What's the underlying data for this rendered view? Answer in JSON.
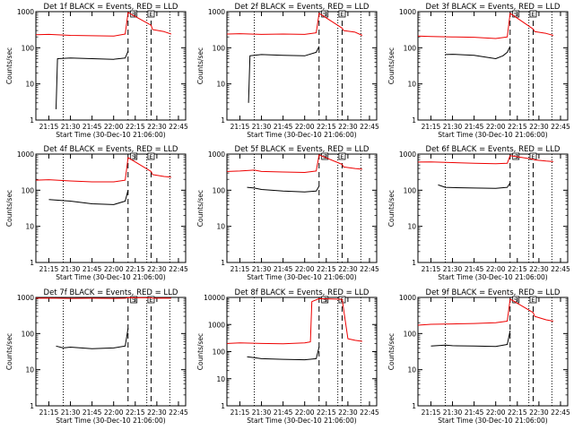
{
  "colors": {
    "events": "#000000",
    "lld": "#ee0000",
    "axes": "#000000",
    "background": "#ffffff"
  },
  "time_ticks": [
    "21:15",
    "21:30",
    "21:45",
    "22:00",
    "22:15",
    "22:30",
    "22:45"
  ],
  "xlabel": "Start Time (30-Dec-10 21:06:00)",
  "ylabel": "Counts/sec",
  "markers": [
    {
      "label": "S",
      "time": "22:14"
    },
    {
      "label": "E",
      "time": "22:26"
    }
  ],
  "chart_data": [
    {
      "type": "line",
      "title": "Det 1f BLACK = Events, RED = LLD",
      "x_range": [
        "21:06",
        "22:50"
      ],
      "ylim": [
        1,
        1000
      ],
      "yscale": "log",
      "y_ticks": [
        "1",
        "10",
        "100",
        "1000"
      ],
      "dotted_lines": [
        "21:25",
        "22:23",
        "22:39"
      ],
      "dashed_lines": [
        "22:10",
        "22:26"
      ],
      "series": [
        {
          "name": "Events",
          "values": [
            [
              "21:20",
              2
            ],
            [
              "21:21",
              50
            ],
            [
              "21:30",
              52
            ],
            [
              "21:45",
              50
            ],
            [
              "22:00",
              48
            ],
            [
              "22:08",
              52
            ],
            [
              "22:10",
              80
            ]
          ]
        },
        {
          "name": "LLD",
          "values": [
            [
              "21:06",
              230
            ],
            [
              "21:15",
              235
            ],
            [
              "21:30",
              220
            ],
            [
              "21:45",
              215
            ],
            [
              "22:00",
              210
            ],
            [
              "22:08",
              240
            ],
            [
              "22:10",
              950
            ],
            [
              "22:26",
              420
            ],
            [
              "22:27",
              320
            ],
            [
              "22:35",
              280
            ],
            [
              "22:40",
              240
            ]
          ]
        }
      ]
    },
    {
      "type": "line",
      "title": "Det 2f BLACK = Events, RED = LLD",
      "x_range": [
        "21:06",
        "22:50"
      ],
      "ylim": [
        1,
        1000
      ],
      "yscale": "log",
      "y_ticks": [
        "1",
        "10",
        "100",
        "1000"
      ],
      "dotted_lines": [
        "21:25",
        "22:23",
        "22:39"
      ],
      "dashed_lines": [
        "22:10",
        "22:26"
      ],
      "series": [
        {
          "name": "Events",
          "values": [
            [
              "21:21",
              3
            ],
            [
              "21:22",
              60
            ],
            [
              "21:30",
              65
            ],
            [
              "21:45",
              62
            ],
            [
              "22:00",
              60
            ],
            [
              "22:08",
              75
            ],
            [
              "22:10",
              110
            ]
          ]
        },
        {
          "name": "LLD",
          "values": [
            [
              "21:06",
              240
            ],
            [
              "21:15",
              245
            ],
            [
              "21:30",
              235
            ],
            [
              "21:45",
              240
            ],
            [
              "22:00",
              235
            ],
            [
              "22:08",
              260
            ],
            [
              "22:10",
              900
            ],
            [
              "22:26",
              350
            ],
            [
              "22:27",
              300
            ],
            [
              "22:35",
              270
            ],
            [
              "22:40",
              220
            ]
          ]
        }
      ]
    },
    {
      "type": "line",
      "title": "Det 3f BLACK = Events, RED = LLD",
      "x_range": [
        "21:06",
        "22:50"
      ],
      "ylim": [
        1,
        1000
      ],
      "yscale": "log",
      "y_ticks": [
        "1",
        "10",
        "100",
        "1000"
      ],
      "dotted_lines": [
        "21:25",
        "22:23",
        "22:39"
      ],
      "dashed_lines": [
        "22:10",
        "22:26"
      ],
      "series": [
        {
          "name": "Events",
          "values": [
            [
              "21:25",
              65
            ],
            [
              "21:30",
              66
            ],
            [
              "21:45",
              62
            ],
            [
              "22:00",
              50
            ],
            [
              "22:05",
              60
            ],
            [
              "22:08",
              75
            ],
            [
              "22:10",
              110
            ]
          ]
        },
        {
          "name": "LLD",
          "values": [
            [
              "21:06",
              210
            ],
            [
              "21:15",
              205
            ],
            [
              "21:30",
              200
            ],
            [
              "21:45",
              195
            ],
            [
              "22:00",
              180
            ],
            [
              "22:08",
              200
            ],
            [
              "22:10",
              900
            ],
            [
              "22:26",
              330
            ],
            [
              "22:27",
              280
            ],
            [
              "22:35",
              250
            ],
            [
              "22:40",
              220
            ]
          ]
        }
      ]
    },
    {
      "type": "line",
      "title": "Det 4f BLACK = Events, RED = LLD",
      "x_range": [
        "21:06",
        "22:50"
      ],
      "ylim": [
        1,
        1000
      ],
      "yscale": "log",
      "y_ticks": [
        "1",
        "10",
        "100",
        "1000"
      ],
      "dotted_lines": [
        "21:25",
        "22:23",
        "22:39"
      ],
      "dashed_lines": [
        "22:10",
        "22:26"
      ],
      "series": [
        {
          "name": "Events",
          "values": [
            [
              "21:15",
              55
            ],
            [
              "21:30",
              50
            ],
            [
              "21:45",
              42
            ],
            [
              "22:00",
              40
            ],
            [
              "22:08",
              50
            ],
            [
              "22:10",
              100
            ]
          ]
        },
        {
          "name": "LLD",
          "values": [
            [
              "21:06",
              190
            ],
            [
              "21:15",
              195
            ],
            [
              "21:30",
              180
            ],
            [
              "21:45",
              170
            ],
            [
              "22:00",
              170
            ],
            [
              "22:08",
              190
            ],
            [
              "22:10",
              800
            ],
            [
              "22:26",
              330
            ],
            [
              "22:27",
              270
            ],
            [
              "22:35",
              240
            ],
            [
              "22:40",
              230
            ]
          ]
        }
      ]
    },
    {
      "type": "line",
      "title": "Det 5f BLACK = Events, RED = LLD",
      "x_range": [
        "21:06",
        "22:50"
      ],
      "ylim": [
        1,
        1000
      ],
      "yscale": "log",
      "y_ticks": [
        "1",
        "10",
        "100",
        "1000"
      ],
      "dotted_lines": [
        "21:25",
        "22:23",
        "22:39"
      ],
      "dashed_lines": [
        "22:10",
        "22:26"
      ],
      "series": [
        {
          "name": "Events",
          "values": [
            [
              "21:20",
              120
            ],
            [
              "21:25",
              115
            ],
            [
              "21:30",
              105
            ],
            [
              "21:45",
              95
            ],
            [
              "22:00",
              90
            ],
            [
              "22:08",
              95
            ],
            [
              "22:10",
              130
            ]
          ]
        },
        {
          "name": "LLD",
          "values": [
            [
              "21:06",
              330
            ],
            [
              "21:15",
              340
            ],
            [
              "21:25",
              360
            ],
            [
              "21:30",
              330
            ],
            [
              "21:45",
              320
            ],
            [
              "22:00",
              310
            ],
            [
              "22:08",
              340
            ],
            [
              "22:10",
              950
            ],
            [
              "22:26",
              520
            ],
            [
              "22:27",
              440
            ],
            [
              "22:35",
              400
            ],
            [
              "22:40",
              380
            ]
          ]
        }
      ]
    },
    {
      "type": "line",
      "title": "Det 6f BLACK = Events, RED = LLD",
      "x_range": [
        "21:06",
        "22:50"
      ],
      "ylim": [
        1,
        1000
      ],
      "yscale": "log",
      "y_ticks": [
        "1",
        "10",
        "100",
        "1000"
      ],
      "dotted_lines": [
        "21:25",
        "22:23",
        "22:39"
      ],
      "dashed_lines": [
        "22:10",
        "22:26"
      ],
      "series": [
        {
          "name": "Events",
          "values": [
            [
              "21:20",
              140
            ],
            [
              "21:25",
              120
            ],
            [
              "21:30",
              118
            ],
            [
              "21:45",
              115
            ],
            [
              "22:00",
              112
            ],
            [
              "22:08",
              120
            ],
            [
              "22:10",
              160
            ]
          ]
        },
        {
          "name": "LLD",
          "values": [
            [
              "21:06",
              600
            ],
            [
              "21:15",
              610
            ],
            [
              "21:30",
              580
            ],
            [
              "21:45",
              560
            ],
            [
              "22:00",
              540
            ],
            [
              "22:08",
              560
            ],
            [
              "22:10",
              900
            ],
            [
              "22:26",
              720
            ],
            [
              "22:27",
              690
            ],
            [
              "22:35",
              640
            ],
            [
              "22:40",
              620
            ]
          ]
        }
      ]
    },
    {
      "type": "line",
      "title": "Det 7f BLACK = Events, RED = LLD",
      "x_range": [
        "21:06",
        "22:50"
      ],
      "ylim": [
        1,
        1000
      ],
      "yscale": "log",
      "y_ticks": [
        "1",
        "10",
        "100",
        "1000"
      ],
      "dotted_lines": [
        "21:25",
        "22:23",
        "22:39"
      ],
      "dashed_lines": [
        "22:10",
        "22:26"
      ],
      "series": [
        {
          "name": "Events",
          "values": [
            [
              "21:20",
              45
            ],
            [
              "21:25",
              40
            ],
            [
              "21:30",
              42
            ],
            [
              "21:45",
              38
            ],
            [
              "22:00",
              40
            ],
            [
              "22:08",
              45
            ],
            [
              "22:10",
              140
            ]
          ]
        },
        {
          "name": "LLD",
          "values": [
            [
              "21:06",
              950
            ],
            [
              "21:15",
              960
            ],
            [
              "21:30",
              940
            ],
            [
              "21:45",
              950
            ],
            [
              "22:00",
              940
            ],
            [
              "22:08",
              950
            ],
            [
              "22:10",
              990
            ],
            [
              "22:26",
              980
            ],
            [
              "22:27",
              950
            ],
            [
              "22:35",
              960
            ],
            [
              "22:40",
              950
            ]
          ]
        }
      ]
    },
    {
      "type": "line",
      "title": "Det 8f BLACK = Events, RED = LLD",
      "x_range": [
        "21:06",
        "22:50"
      ],
      "ylim": [
        1,
        10000
      ],
      "yscale": "log",
      "y_ticks": [
        "1",
        "10",
        "100",
        "1000",
        "10000"
      ],
      "dotted_lines": [
        "21:25",
        "22:23",
        "22:39"
      ],
      "dashed_lines": [
        "22:10",
        "22:26"
      ],
      "series": [
        {
          "name": "Events",
          "values": [
            [
              "21:20",
              65
            ],
            [
              "21:25",
              60
            ],
            [
              "21:30",
              55
            ],
            [
              "21:45",
              52
            ],
            [
              "22:00",
              50
            ],
            [
              "22:08",
              55
            ],
            [
              "22:10",
              150
            ]
          ]
        },
        {
          "name": "LLD",
          "values": [
            [
              "21:06",
              200
            ],
            [
              "21:15",
              210
            ],
            [
              "21:30",
              200
            ],
            [
              "21:45",
              195
            ],
            [
              "22:00",
              210
            ],
            [
              "22:04",
              230
            ],
            [
              "22:05",
              7000
            ],
            [
              "22:10",
              9000
            ],
            [
              "22:26",
              8500
            ],
            [
              "22:30",
              300
            ],
            [
              "22:35",
              260
            ],
            [
              "22:40",
              240
            ]
          ]
        }
      ]
    },
    {
      "type": "line",
      "title": "Det 9f BLACK = Events, RED = LLD",
      "x_range": [
        "21:06",
        "22:50"
      ],
      "ylim": [
        1,
        1000
      ],
      "yscale": "log",
      "y_ticks": [
        "1",
        "10",
        "100",
        "1000"
      ],
      "dotted_lines": [
        "21:25",
        "22:23",
        "22:39"
      ],
      "dashed_lines": [
        "22:10",
        "22:26"
      ],
      "series": [
        {
          "name": "Events",
          "values": [
            [
              "21:15",
              45
            ],
            [
              "21:25",
              48
            ],
            [
              "21:30",
              46
            ],
            [
              "21:45",
              45
            ],
            [
              "22:00",
              44
            ],
            [
              "22:08",
              50
            ],
            [
              "22:10",
              120
            ]
          ]
        },
        {
          "name": "LLD",
          "values": [
            [
              "21:06",
              170
            ],
            [
              "21:15",
              180
            ],
            [
              "21:30",
              185
            ],
            [
              "21:45",
              190
            ],
            [
              "22:00",
              200
            ],
            [
              "22:08",
              220
            ],
            [
              "22:10",
              900
            ],
            [
              "22:26",
              380
            ],
            [
              "22:27",
              300
            ],
            [
              "22:35",
              240
            ],
            [
              "22:40",
              220
            ]
          ]
        }
      ]
    }
  ]
}
